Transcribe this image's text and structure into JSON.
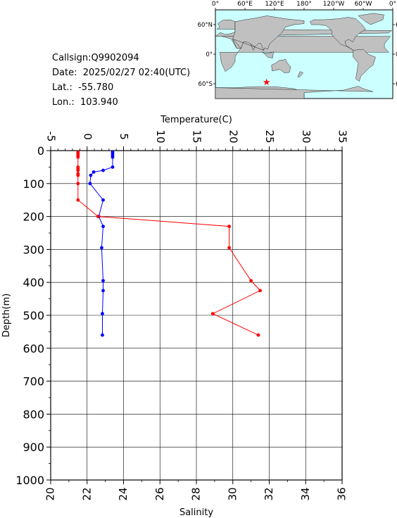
{
  "info": {
    "callsign": "Callsign:Q9902094",
    "date": "Date:  2025/02/27 02:40(UTC)",
    "lat": "Lat.:  -55.780",
    "lon": "Lon.:  103.940"
  },
  "map": {
    "top_ticks": [
      "0°",
      "60°E",
      "120°E",
      "180°",
      "120°W",
      "60°W",
      "0°"
    ],
    "lat_ticks": [
      "60°N",
      "0°",
      "60°S"
    ],
    "ocean_color": "#ccffff",
    "land_color": "#c0c0c0",
    "marker_color": "#ff0000",
    "marker": {
      "lon": 103.94,
      "lat": -55.78
    }
  },
  "chart_data": {
    "type": "line",
    "title": "",
    "top_axis": {
      "label": "Temperature(C)",
      "range": [
        -5,
        35
      ],
      "ticks": [
        -5,
        0,
        5,
        10,
        15,
        20,
        25,
        30,
        35
      ]
    },
    "bottom_axis": {
      "label": "Salinity",
      "range": [
        20,
        36
      ],
      "ticks": [
        20,
        22,
        24,
        26,
        28,
        30,
        32,
        34,
        36
      ]
    },
    "y_axis": {
      "label": "Depth(m)",
      "range": [
        0,
        1000
      ],
      "inverted": true,
      "ticks": [
        0,
        100,
        200,
        300,
        400,
        500,
        600,
        700,
        800,
        900,
        1000
      ]
    },
    "grid": true,
    "series": [
      {
        "axis": "temperature",
        "color": "#0000ff",
        "depth": [
          5,
          10,
          15,
          20,
          50,
          60,
          65,
          75,
          100,
          150,
          200,
          230,
          295,
          395,
          425,
          495,
          560
        ],
        "values": [
          3.5,
          3.5,
          3.5,
          3.5,
          3.5,
          2.2,
          0.9,
          0.5,
          0.4,
          2.2,
          1.6,
          2.2,
          2.0,
          2.2,
          2.2,
          2.1,
          2.1
        ]
      },
      {
        "axis": "salinity",
        "color": "#ff0000",
        "depth": [
          5,
          10,
          15,
          20,
          50,
          55,
          60,
          70,
          75,
          100,
          150,
          200,
          230,
          295,
          395,
          425,
          495,
          560
        ],
        "values": [
          21.5,
          21.5,
          21.5,
          21.5,
          21.5,
          21.5,
          21.5,
          21.5,
          21.5,
          21.5,
          21.5,
          22.6,
          29.8,
          29.8,
          31.0,
          31.5,
          28.9,
          31.4
        ]
      }
    ]
  }
}
